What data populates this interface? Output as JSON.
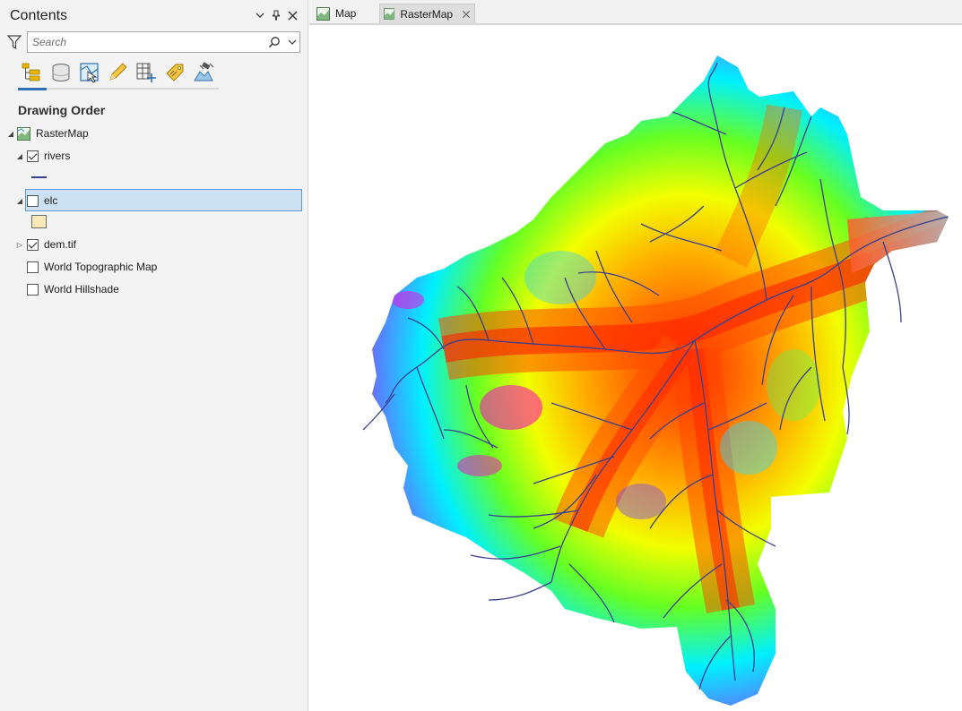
{
  "contents": {
    "title": "Contents",
    "controls": {
      "menu_icon": "chevron-down-icon",
      "pin_icon": "pin-icon",
      "close_icon": "close-icon"
    },
    "search": {
      "placeholder": "Search",
      "value": ""
    },
    "toolbar_icons": [
      "list-by-drawing-order-icon",
      "list-by-data-source-icon",
      "list-by-selection-icon",
      "list-by-editing-icon",
      "list-by-snapping-icon",
      "list-by-labeling-icon",
      "list-by-perspective-imagery-icon"
    ],
    "section_heading": "Drawing Order",
    "map_name": "RasterMap",
    "layers": [
      {
        "name": "rivers",
        "checked": true,
        "expanded": true
      },
      {
        "name": "elc",
        "checked": false,
        "expanded": true,
        "selected": true
      },
      {
        "name": "dem.tif",
        "checked": true,
        "expanded": false
      },
      {
        "name": "World Topographic Map",
        "checked": false
      },
      {
        "name": "World Hillshade",
        "checked": false
      }
    ]
  },
  "tabs": [
    {
      "label": "Map",
      "active": false
    },
    {
      "label": "RasterMap",
      "active": true
    }
  ],
  "colors": {
    "selection_fill": "#cde1f4",
    "selection_border": "#5b9bd5",
    "river_line": "#3b3f8f",
    "elc_fill": "#fbeab5",
    "accent": "#2f6fb3"
  }
}
